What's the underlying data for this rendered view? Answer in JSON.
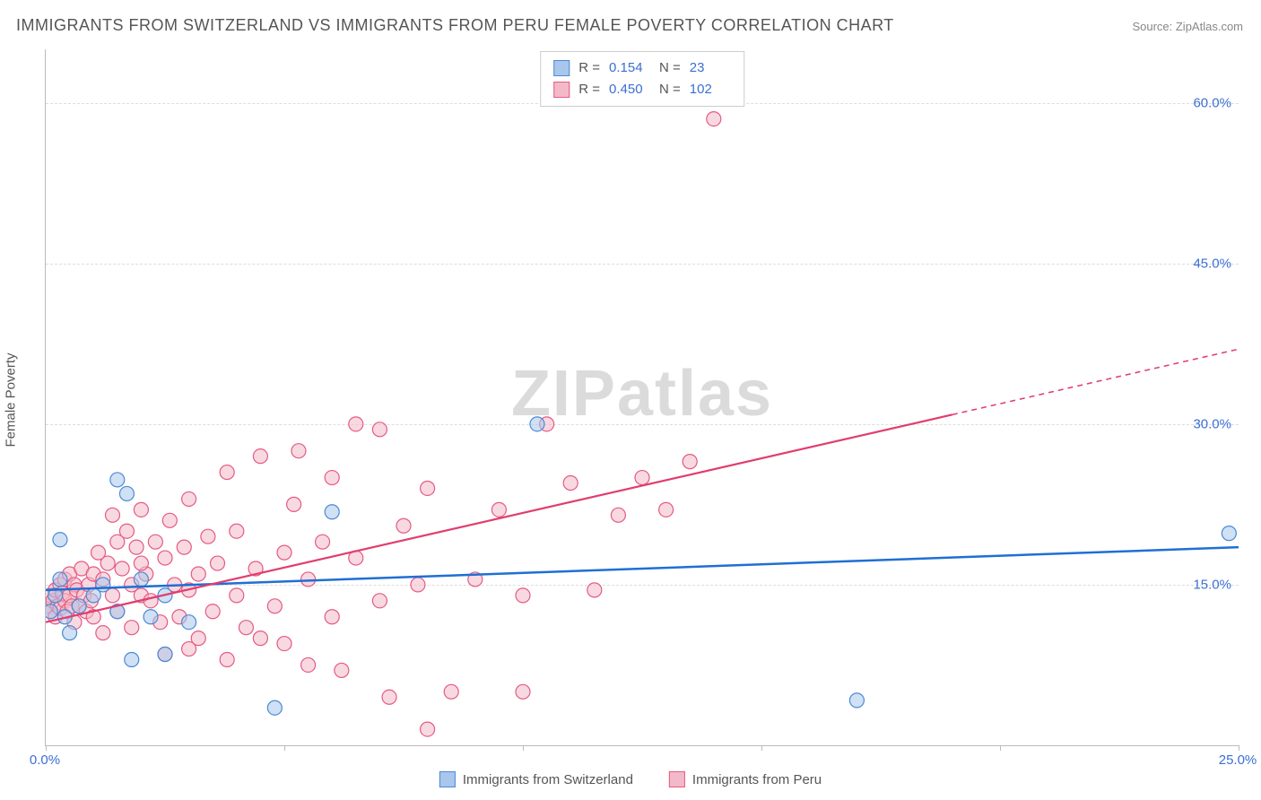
{
  "title": "IMMIGRANTS FROM SWITZERLAND VS IMMIGRANTS FROM PERU FEMALE POVERTY CORRELATION CHART",
  "source": "Source: ZipAtlas.com",
  "watermark_a": "ZIP",
  "watermark_b": "atlas",
  "ylabel": "Female Poverty",
  "chart": {
    "type": "scatter",
    "xlim": [
      0,
      25
    ],
    "ylim": [
      0,
      65
    ],
    "x_ticks": [
      0,
      5,
      10,
      15,
      20,
      25
    ],
    "x_tick_labels": [
      "0.0%",
      "",
      "",
      "",
      "",
      "25.0%"
    ],
    "y_ticks": [
      15,
      30,
      45,
      60
    ],
    "y_tick_labels": [
      "15.0%",
      "30.0%",
      "45.0%",
      "60.0%"
    ],
    "background_color": "#ffffff",
    "grid_color": "#dddddd",
    "axis_color": "#bbbbbb",
    "marker_radius": 8,
    "marker_opacity": 0.55,
    "marker_stroke_width": 1.2,
    "series": [
      {
        "name": "Immigrants from Switzerland",
        "color_fill": "#a9c6ec",
        "color_stroke": "#4a8ad4",
        "line_color": "#1f6fd4",
        "line_width": 2.5,
        "trend": {
          "x1": 0,
          "y1": 14.5,
          "x2": 25,
          "y2": 18.5,
          "dash_from_x": 25
        },
        "R": "0.154",
        "N": "23",
        "points": [
          [
            0.1,
            12.5
          ],
          [
            0.2,
            14.0
          ],
          [
            0.3,
            19.2
          ],
          [
            0.4,
            12.0
          ],
          [
            0.5,
            10.5
          ],
          [
            1.2,
            15.0
          ],
          [
            1.5,
            24.8
          ],
          [
            1.5,
            12.5
          ],
          [
            1.7,
            23.5
          ],
          [
            1.8,
            8.0
          ],
          [
            2.0,
            15.5
          ],
          [
            2.5,
            14.0
          ],
          [
            2.5,
            8.5
          ],
          [
            3.0,
            11.5
          ],
          [
            4.8,
            3.5
          ],
          [
            6.0,
            21.8
          ],
          [
            10.3,
            30.0
          ],
          [
            17.0,
            4.2
          ],
          [
            24.8,
            19.8
          ],
          [
            1.0,
            14.0
          ],
          [
            0.7,
            13.0
          ],
          [
            0.3,
            15.5
          ],
          [
            2.2,
            12.0
          ]
        ]
      },
      {
        "name": "Immigrants from Peru",
        "color_fill": "#f4b9c8",
        "color_stroke": "#e55a82",
        "line_color": "#e13d6e",
        "line_width": 2.2,
        "trend": {
          "x1": 0,
          "y1": 11.5,
          "x2": 25,
          "y2": 37.0,
          "dash_from_x": 19
        },
        "R": "0.450",
        "N": "102",
        "points": [
          [
            0.05,
            13.0
          ],
          [
            0.1,
            12.5
          ],
          [
            0.1,
            14.0
          ],
          [
            0.15,
            13.5
          ],
          [
            0.2,
            14.5
          ],
          [
            0.2,
            12.0
          ],
          [
            0.25,
            13.0
          ],
          [
            0.3,
            15.0
          ],
          [
            0.3,
            12.8
          ],
          [
            0.35,
            14.2
          ],
          [
            0.4,
            13.5
          ],
          [
            0.4,
            15.5
          ],
          [
            0.45,
            12.5
          ],
          [
            0.5,
            14.0
          ],
          [
            0.5,
            16.0
          ],
          [
            0.55,
            13.0
          ],
          [
            0.6,
            15.0
          ],
          [
            0.65,
            14.5
          ],
          [
            0.7,
            13.0
          ],
          [
            0.75,
            16.5
          ],
          [
            0.8,
            14.0
          ],
          [
            0.85,
            12.5
          ],
          [
            0.9,
            15.0
          ],
          [
            0.95,
            13.5
          ],
          [
            1.0,
            16.0
          ],
          [
            1.0,
            12.0
          ],
          [
            1.1,
            18.0
          ],
          [
            1.2,
            15.5
          ],
          [
            1.3,
            17.0
          ],
          [
            1.4,
            14.0
          ],
          [
            1.5,
            19.0
          ],
          [
            1.5,
            12.5
          ],
          [
            1.6,
            16.5
          ],
          [
            1.7,
            20.0
          ],
          [
            1.8,
            15.0
          ],
          [
            1.8,
            11.0
          ],
          [
            1.9,
            18.5
          ],
          [
            2.0,
            14.0
          ],
          [
            2.0,
            22.0
          ],
          [
            2.1,
            16.0
          ],
          [
            2.2,
            13.5
          ],
          [
            2.3,
            19.0
          ],
          [
            2.4,
            11.5
          ],
          [
            2.5,
            17.5
          ],
          [
            2.5,
            8.5
          ],
          [
            2.6,
            21.0
          ],
          [
            2.7,
            15.0
          ],
          [
            2.8,
            12.0
          ],
          [
            2.9,
            18.5
          ],
          [
            3.0,
            14.5
          ],
          [
            3.0,
            23.0
          ],
          [
            3.2,
            16.0
          ],
          [
            3.2,
            10.0
          ],
          [
            3.4,
            19.5
          ],
          [
            3.5,
            12.5
          ],
          [
            3.6,
            17.0
          ],
          [
            3.8,
            8.0
          ],
          [
            3.8,
            25.5
          ],
          [
            4.0,
            14.0
          ],
          [
            4.0,
            20.0
          ],
          [
            4.2,
            11.0
          ],
          [
            4.4,
            16.5
          ],
          [
            4.5,
            27.0
          ],
          [
            4.8,
            13.0
          ],
          [
            5.0,
            18.0
          ],
          [
            5.0,
            9.5
          ],
          [
            5.2,
            22.5
          ],
          [
            5.5,
            15.5
          ],
          [
            5.5,
            7.5
          ],
          [
            5.8,
            19.0
          ],
          [
            6.0,
            25.0
          ],
          [
            6.0,
            12.0
          ],
          [
            6.2,
            7.0
          ],
          [
            6.5,
            17.5
          ],
          [
            6.5,
            30.0
          ],
          [
            7.0,
            13.5
          ],
          [
            7.0,
            29.5
          ],
          [
            7.2,
            4.5
          ],
          [
            7.5,
            20.5
          ],
          [
            7.8,
            15.0
          ],
          [
            8.0,
            1.5
          ],
          [
            8.0,
            24.0
          ],
          [
            8.5,
            5.0
          ],
          [
            9.0,
            15.5
          ],
          [
            9.5,
            22.0
          ],
          [
            10.0,
            14.0
          ],
          [
            10.5,
            30.0
          ],
          [
            11.0,
            24.5
          ],
          [
            11.5,
            14.5
          ],
          [
            12.0,
            21.5
          ],
          [
            12.5,
            25.0
          ],
          [
            13.0,
            22.0
          ],
          [
            13.5,
            26.5
          ],
          [
            14.0,
            58.5
          ],
          [
            10.0,
            5.0
          ],
          [
            3.0,
            9.0
          ],
          [
            4.5,
            10.0
          ],
          [
            5.3,
            27.5
          ],
          [
            2.0,
            17.0
          ],
          [
            1.2,
            10.5
          ],
          [
            0.6,
            11.5
          ],
          [
            1.4,
            21.5
          ]
        ]
      }
    ]
  },
  "legend_top": {
    "r_label": "R  =",
    "n_label": "N  ="
  },
  "legend_bottom": {
    "series1": "Immigrants from Switzerland",
    "series2": "Immigrants from Peru"
  }
}
